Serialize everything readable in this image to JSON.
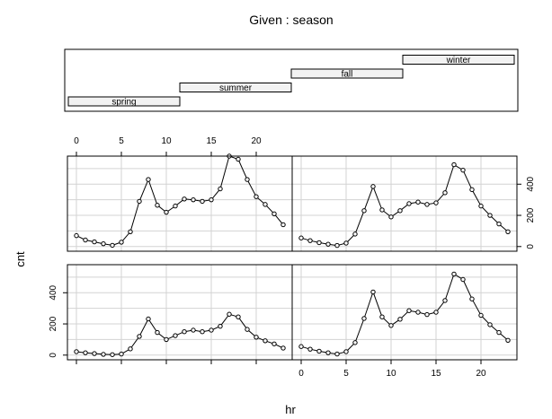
{
  "chart_data": {
    "type": "line",
    "title": "Given : season",
    "xlabel": "hr",
    "ylabel": "cnt",
    "grid": true,
    "xlim": [
      -1,
      24
    ],
    "ylim": [
      -30,
      580
    ],
    "x_ticks": [
      0,
      5,
      10,
      15,
      20
    ],
    "y_ticks": [
      0,
      200,
      400
    ],
    "given_intervals": [
      {
        "name": "spring",
        "range": [
          1,
          2
        ]
      },
      {
        "name": "summer",
        "range": [
          2,
          3
        ]
      },
      {
        "name": "fall",
        "range": [
          3,
          4
        ]
      },
      {
        "name": "winter",
        "range": [
          4,
          5
        ]
      }
    ],
    "x": [
      0,
      1,
      2,
      3,
      4,
      5,
      6,
      7,
      8,
      9,
      10,
      11,
      12,
      13,
      14,
      15,
      16,
      17,
      18,
      19,
      20,
      21,
      22,
      23
    ],
    "panels": [
      {
        "season": "spring",
        "values": [
          22,
          15,
          10,
          5,
          3,
          7,
          40,
          120,
          232,
          145,
          100,
          125,
          150,
          160,
          150,
          160,
          185,
          262,
          245,
          165,
          115,
          92,
          72,
          45
        ]
      },
      {
        "season": "summer",
        "values": [
          70,
          42,
          30,
          18,
          8,
          28,
          95,
          290,
          430,
          265,
          220,
          260,
          305,
          300,
          290,
          300,
          370,
          580,
          560,
          430,
          320,
          270,
          210,
          140
        ]
      },
      {
        "season": "fall",
        "values": [
          55,
          38,
          25,
          15,
          7,
          22,
          80,
          235,
          405,
          245,
          190,
          230,
          285,
          275,
          260,
          275,
          350,
          520,
          485,
          360,
          255,
          195,
          145,
          95
        ]
      },
      {
        "season": "winter",
        "values": [
          55,
          38,
          25,
          15,
          7,
          22,
          80,
          230,
          385,
          235,
          190,
          230,
          275,
          285,
          270,
          280,
          345,
          525,
          490,
          365,
          260,
          200,
          145,
          95
        ]
      }
    ]
  }
}
